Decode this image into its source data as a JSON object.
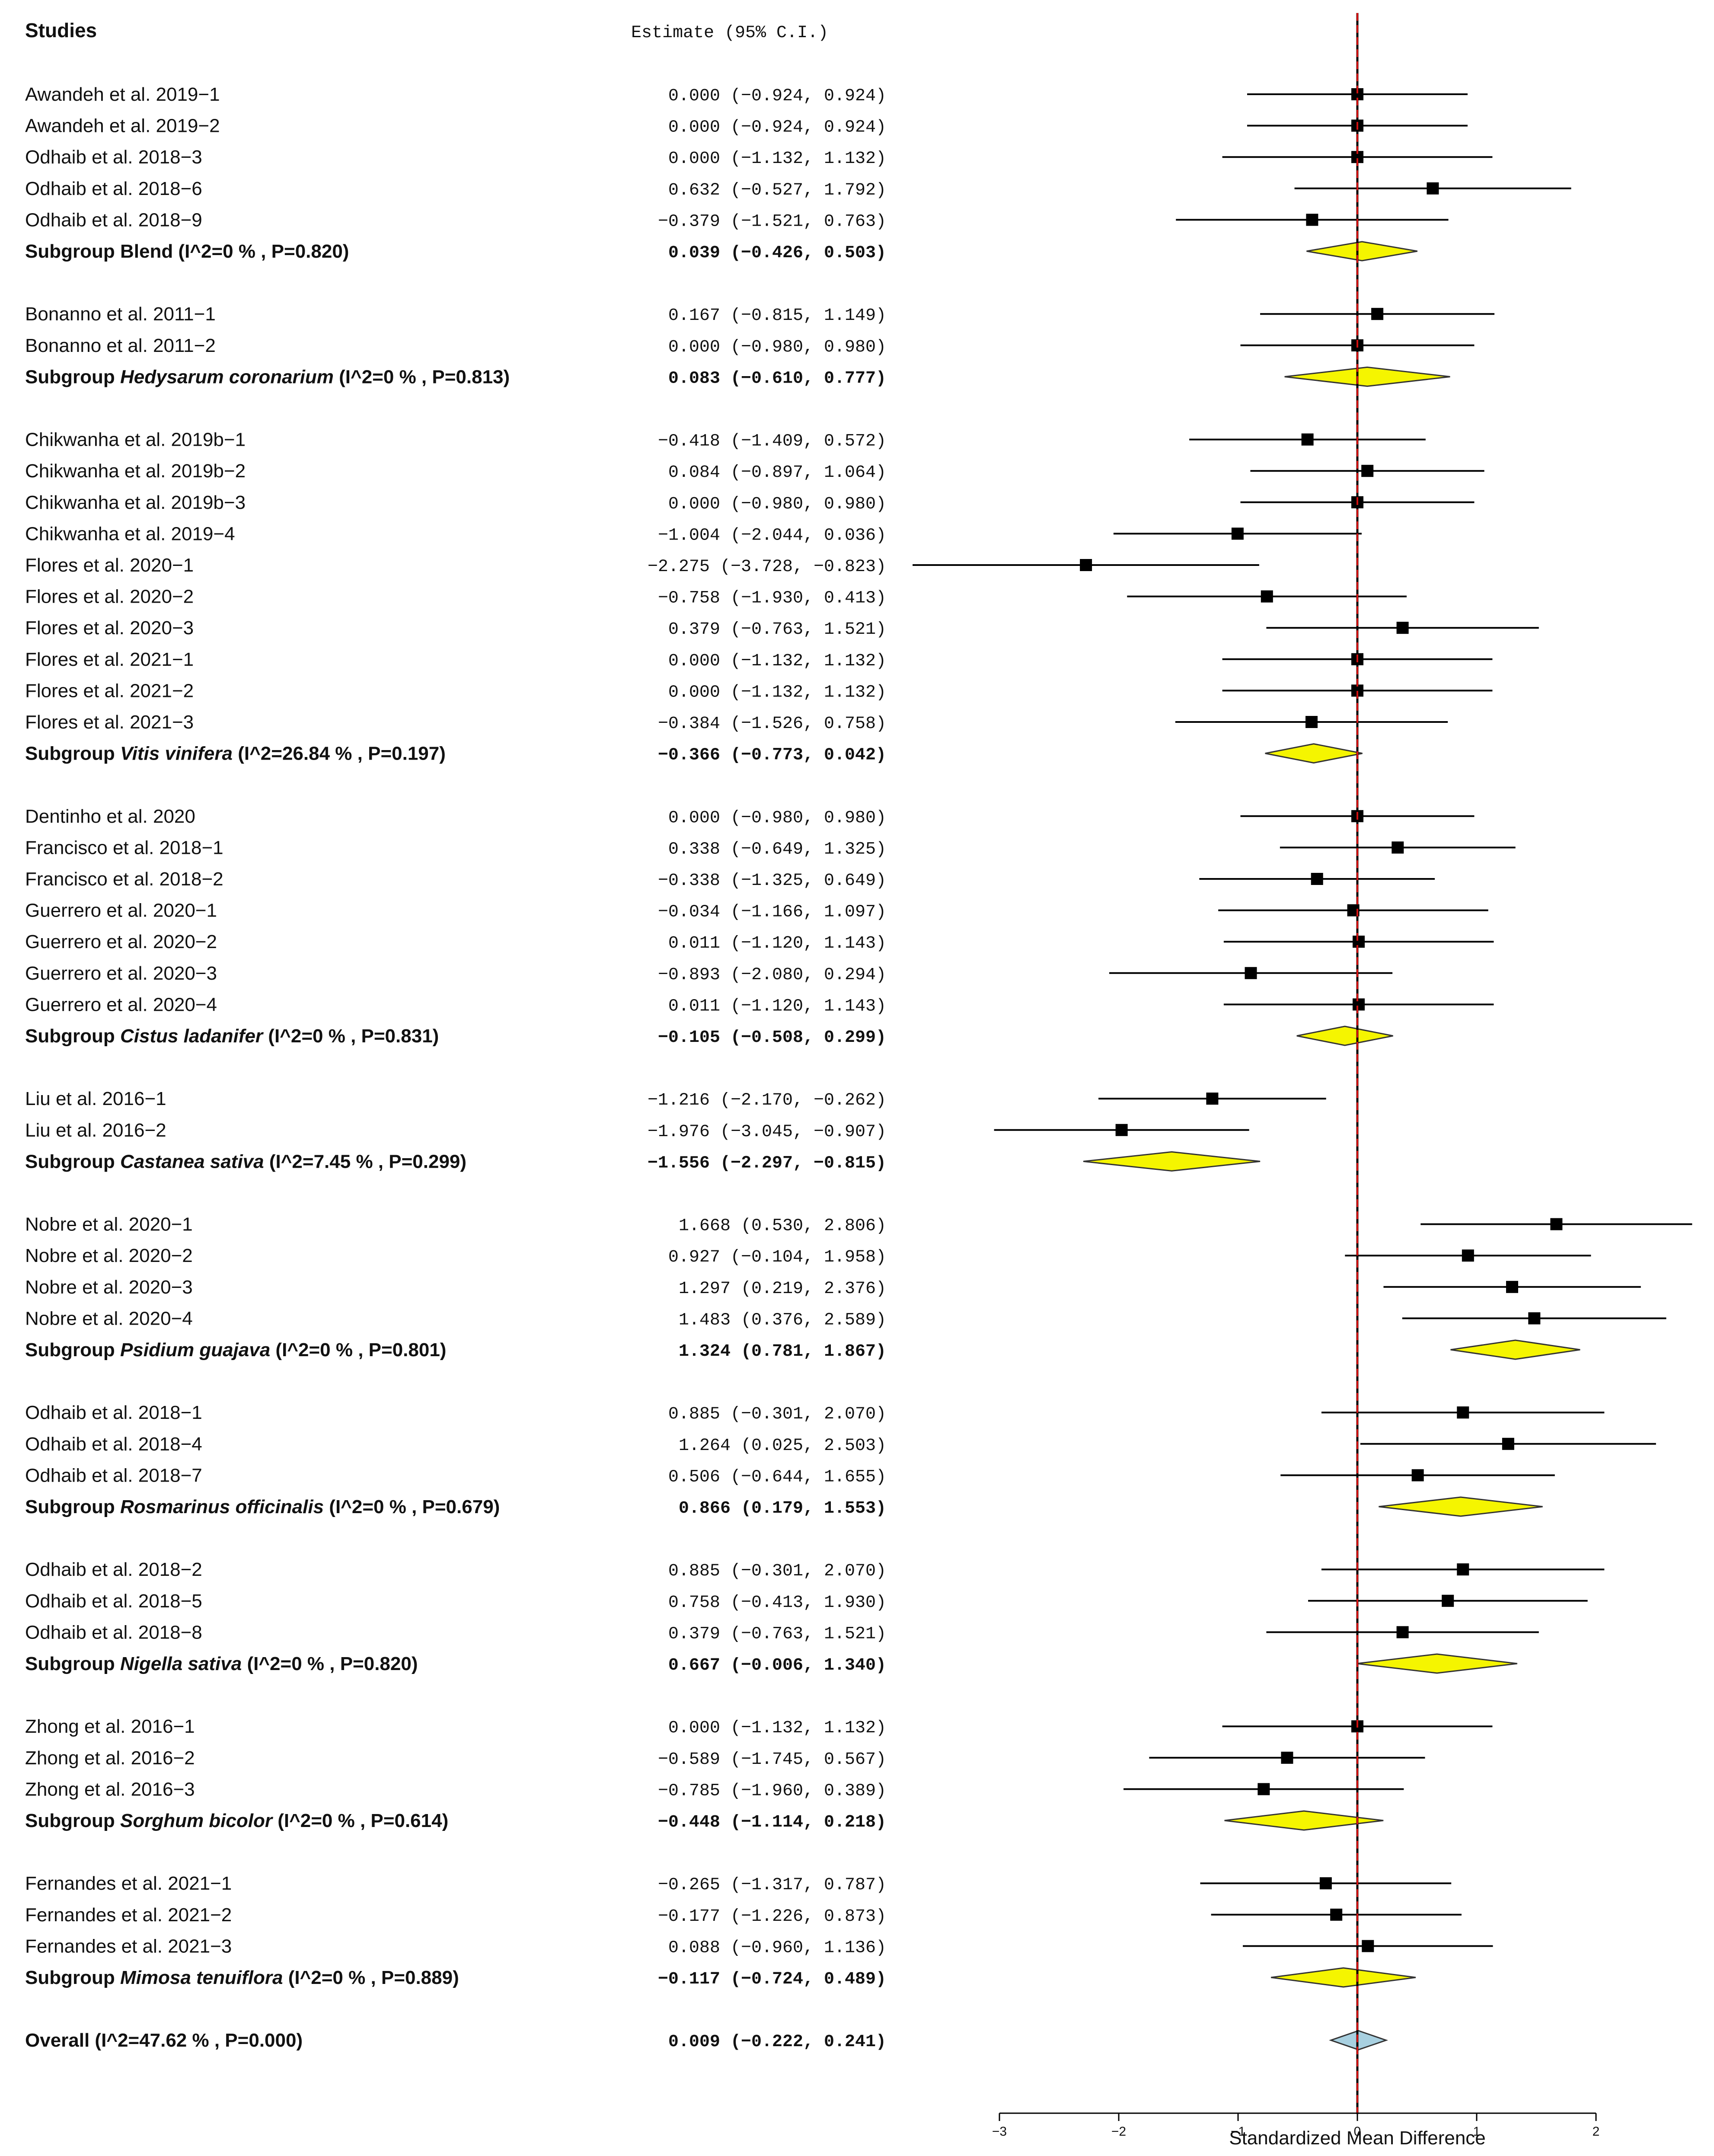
{
  "chart_data": {
    "type": "forest",
    "header": {
      "studies": "Studies",
      "estimate": "Estimate (95% C.I.)"
    },
    "xlabel": "Standardized Mean Difference",
    "xlim": [
      -3,
      2
    ],
    "xticks": [
      -3,
      -2,
      -1,
      0,
      1,
      2
    ],
    "colors": {
      "study_box": "#000000",
      "subgroup_diamond": "#f5f500",
      "overall_diamond": "#a8d0e0",
      "null_line": "#d01010"
    },
    "groups": [
      {
        "rows": [
          {
            "label": "Awandeh et al. 2019−1",
            "est": 0.0,
            "lo": -0.924,
            "hi": 0.924,
            "text": "0.000 (−0.924,  0.924)"
          },
          {
            "label": "Awandeh et al. 2019−2",
            "est": 0.0,
            "lo": -0.924,
            "hi": 0.924,
            "text": "0.000 (−0.924,  0.924)"
          },
          {
            "label": "Odhaib et al. 2018−3",
            "est": 0.0,
            "lo": -1.132,
            "hi": 1.132,
            "text": "0.000 (−1.132,  1.132)"
          },
          {
            "label": "Odhaib et al. 2018−6",
            "est": 0.632,
            "lo": -0.527,
            "hi": 1.792,
            "text": "0.632 (−0.527,  1.792)"
          },
          {
            "label": "Odhaib et al. 2018−9",
            "est": -0.379,
            "lo": -1.521,
            "hi": 0.763,
            "text": "−0.379 (−1.521,  0.763)"
          }
        ],
        "subgroup": {
          "prefix": "Subgroup ",
          "name": "Blend",
          "italic": false,
          "stats": " (I^2=0 % , P=0.820)",
          "est": 0.039,
          "lo": -0.426,
          "hi": 0.503,
          "text": "0.039 (−0.426,  0.503)"
        }
      },
      {
        "rows": [
          {
            "label": "Bonanno et al. 2011−1",
            "est": 0.167,
            "lo": -0.815,
            "hi": 1.149,
            "text": "0.167 (−0.815,  1.149)"
          },
          {
            "label": "Bonanno et al. 2011−2",
            "est": 0.0,
            "lo": -0.98,
            "hi": 0.98,
            "text": "0.000 (−0.980,  0.980)"
          }
        ],
        "subgroup": {
          "prefix": "Subgroup ",
          "name": "Hedysarum coronarium",
          "italic": true,
          "stats": " (I^2=0 % , P=0.813)",
          "est": 0.083,
          "lo": -0.61,
          "hi": 0.777,
          "text": "0.083 (−0.610,  0.777)"
        }
      },
      {
        "rows": [
          {
            "label": "Chikwanha et al. 2019b−1",
            "est": -0.418,
            "lo": -1.409,
            "hi": 0.572,
            "text": "−0.418 (−1.409,  0.572)"
          },
          {
            "label": "Chikwanha et al. 2019b−2",
            "est": 0.084,
            "lo": -0.897,
            "hi": 1.064,
            "text": "0.084 (−0.897,  1.064)"
          },
          {
            "label": "Chikwanha et al. 2019b−3",
            "est": 0.0,
            "lo": -0.98,
            "hi": 0.98,
            "text": "0.000 (−0.980,  0.980)"
          },
          {
            "label": "Chikwanha et al. 2019−4",
            "est": -1.004,
            "lo": -2.044,
            "hi": 0.036,
            "text": "−1.004 (−2.044,  0.036)"
          },
          {
            "label": "Flores et al. 2020−1",
            "est": -2.275,
            "lo": -3.728,
            "hi": -0.823,
            "text": "−2.275 (−3.728, −0.823)"
          },
          {
            "label": "Flores et al. 2020−2",
            "est": -0.758,
            "lo": -1.93,
            "hi": 0.413,
            "text": "−0.758 (−1.930,  0.413)"
          },
          {
            "label": "Flores et al. 2020−3",
            "est": 0.379,
            "lo": -0.763,
            "hi": 1.521,
            "text": "0.379 (−0.763,  1.521)"
          },
          {
            "label": "Flores et al. 2021−1",
            "est": 0.0,
            "lo": -1.132,
            "hi": 1.132,
            "text": "0.000 (−1.132,  1.132)"
          },
          {
            "label": "Flores et al. 2021−2",
            "est": 0.0,
            "lo": -1.132,
            "hi": 1.132,
            "text": "0.000 (−1.132,  1.132)"
          },
          {
            "label": "Flores et al. 2021−3",
            "est": -0.384,
            "lo": -1.526,
            "hi": 0.758,
            "text": "−0.384 (−1.526,  0.758)"
          }
        ],
        "subgroup": {
          "prefix": "Subgroup ",
          "name": "Vitis vinifera",
          "italic": true,
          "stats": " (I^2=26.84 % , P=0.197)",
          "est": -0.366,
          "lo": -0.773,
          "hi": 0.042,
          "text": "−0.366 (−0.773,  0.042)"
        }
      },
      {
        "rows": [
          {
            "label": "Dentinho et al. 2020",
            "est": 0.0,
            "lo": -0.98,
            "hi": 0.98,
            "text": "0.000 (−0.980,  0.980)"
          },
          {
            "label": "Francisco et al. 2018−1",
            "est": 0.338,
            "lo": -0.649,
            "hi": 1.325,
            "text": "0.338 (−0.649,  1.325)"
          },
          {
            "label": "Francisco et al. 2018−2",
            "est": -0.338,
            "lo": -1.325,
            "hi": 0.649,
            "text": "−0.338 (−1.325,  0.649)"
          },
          {
            "label": "Guerrero et al. 2020−1",
            "est": -0.034,
            "lo": -1.166,
            "hi": 1.097,
            "text": "−0.034 (−1.166,  1.097)"
          },
          {
            "label": "Guerrero et al. 2020−2",
            "est": 0.011,
            "lo": -1.12,
            "hi": 1.143,
            "text": "0.011 (−1.120,  1.143)"
          },
          {
            "label": "Guerrero et al. 2020−3",
            "est": -0.893,
            "lo": -2.08,
            "hi": 0.294,
            "text": "−0.893 (−2.080,  0.294)"
          },
          {
            "label": "Guerrero et al. 2020−4",
            "est": 0.011,
            "lo": -1.12,
            "hi": 1.143,
            "text": "0.011 (−1.120,  1.143)"
          }
        ],
        "subgroup": {
          "prefix": "Subgroup ",
          "name": "Cistus ladanifer",
          "italic": true,
          "stats": " (I^2=0 % , P=0.831)",
          "est": -0.105,
          "lo": -0.508,
          "hi": 0.299,
          "text": "−0.105 (−0.508,  0.299)"
        }
      },
      {
        "rows": [
          {
            "label": "Liu et al. 2016−1",
            "est": -1.216,
            "lo": -2.17,
            "hi": -0.262,
            "text": "−1.216 (−2.170, −0.262)"
          },
          {
            "label": "Liu et al. 2016−2",
            "est": -1.976,
            "lo": -3.045,
            "hi": -0.907,
            "text": "−1.976 (−3.045, −0.907)"
          }
        ],
        "subgroup": {
          "prefix": "Subgroup ",
          "name": "Castanea sativa",
          "italic": true,
          "stats": " (I^2=7.45 % , P=0.299)",
          "est": -1.556,
          "lo": -2.297,
          "hi": -0.815,
          "text": "−1.556 (−2.297, −0.815)"
        }
      },
      {
        "rows": [
          {
            "label": "Nobre et al. 2020−1",
            "est": 1.668,
            "lo": 0.53,
            "hi": 2.806,
            "text": "1.668  (0.530,  2.806)"
          },
          {
            "label": "Nobre et al. 2020−2",
            "est": 0.927,
            "lo": -0.104,
            "hi": 1.958,
            "text": "0.927 (−0.104,  1.958)"
          },
          {
            "label": "Nobre et al. 2020−3",
            "est": 1.297,
            "lo": 0.219,
            "hi": 2.376,
            "text": "1.297  (0.219,  2.376)"
          },
          {
            "label": "Nobre et al. 2020−4",
            "est": 1.483,
            "lo": 0.376,
            "hi": 2.589,
            "text": "1.483  (0.376,  2.589)"
          }
        ],
        "subgroup": {
          "prefix": "Subgroup ",
          "name": "Psidium guajava",
          "italic": true,
          "stats": " (I^2=0 % , P=0.801)",
          "est": 1.324,
          "lo": 0.781,
          "hi": 1.867,
          "text": "1.324  (0.781,  1.867)"
        }
      },
      {
        "rows": [
          {
            "label": "Odhaib et al. 2018−1",
            "est": 0.885,
            "lo": -0.301,
            "hi": 2.07,
            "text": "0.885 (−0.301,  2.070)"
          },
          {
            "label": "Odhaib et al. 2018−4",
            "est": 1.264,
            "lo": 0.025,
            "hi": 2.503,
            "text": "1.264  (0.025,  2.503)"
          },
          {
            "label": "Odhaib et al. 2018−7",
            "est": 0.506,
            "lo": -0.644,
            "hi": 1.655,
            "text": "0.506 (−0.644,  1.655)"
          }
        ],
        "subgroup": {
          "prefix": "Subgroup ",
          "name": "Rosmarinus officinalis",
          "italic": true,
          "stats": " (I^2=0 % , P=0.679)",
          "est": 0.866,
          "lo": 0.179,
          "hi": 1.553,
          "text": "0.866  (0.179,  1.553)"
        }
      },
      {
        "rows": [
          {
            "label": "Odhaib et al. 2018−2",
            "est": 0.885,
            "lo": -0.301,
            "hi": 2.07,
            "text": "0.885 (−0.301,  2.070)"
          },
          {
            "label": "Odhaib et al. 2018−5",
            "est": 0.758,
            "lo": -0.413,
            "hi": 1.93,
            "text": "0.758 (−0.413,  1.930)"
          },
          {
            "label": "Odhaib et al. 2018−8",
            "est": 0.379,
            "lo": -0.763,
            "hi": 1.521,
            "text": "0.379 (−0.763,  1.521)"
          }
        ],
        "subgroup": {
          "prefix": "Subgroup ",
          "name": "Nigella sativa",
          "italic": true,
          "stats": " (I^2=0 % , P=0.820)",
          "est": 0.667,
          "lo": -0.006,
          "hi": 1.34,
          "text": "0.667 (−0.006,  1.340)"
        }
      },
      {
        "rows": [
          {
            "label": "Zhong et al. 2016−1",
            "est": 0.0,
            "lo": -1.132,
            "hi": 1.132,
            "text": "0.000 (−1.132,  1.132)"
          },
          {
            "label": "Zhong et al. 2016−2",
            "est": -0.589,
            "lo": -1.745,
            "hi": 0.567,
            "text": "−0.589 (−1.745,  0.567)"
          },
          {
            "label": "Zhong et al. 2016−3",
            "est": -0.785,
            "lo": -1.96,
            "hi": 0.389,
            "text": "−0.785 (−1.960,  0.389)"
          }
        ],
        "subgroup": {
          "prefix": "Subgroup ",
          "name": "Sorghum bicolor",
          "italic": true,
          "stats": " (I^2=0 % , P=0.614)",
          "est": -0.448,
          "lo": -1.114,
          "hi": 0.218,
          "text": "−0.448 (−1.114,  0.218)"
        }
      },
      {
        "rows": [
          {
            "label": "Fernandes et al. 2021−1",
            "est": -0.265,
            "lo": -1.317,
            "hi": 0.787,
            "text": "−0.265 (−1.317,  0.787)"
          },
          {
            "label": "Fernandes et al. 2021−2",
            "est": -0.177,
            "lo": -1.226,
            "hi": 0.873,
            "text": "−0.177 (−1.226,  0.873)"
          },
          {
            "label": "Fernandes et al. 2021−3",
            "est": 0.088,
            "lo": -0.96,
            "hi": 1.136,
            "text": "0.088 (−0.960,  1.136)"
          }
        ],
        "subgroup": {
          "prefix": "Subgroup ",
          "name": "Mimosa tenuiflora",
          "italic": true,
          "stats": " (I^2=0 % , P=0.889)",
          "est": -0.117,
          "lo": -0.724,
          "hi": 0.489,
          "text": "−0.117 (−0.724,  0.489)"
        }
      }
    ],
    "overall": {
      "label": "Overall (I^2=47.62 % , P=0.000)",
      "est": 0.009,
      "lo": -0.222,
      "hi": 0.241,
      "text": "0.009 (−0.222,  0.241)"
    }
  }
}
